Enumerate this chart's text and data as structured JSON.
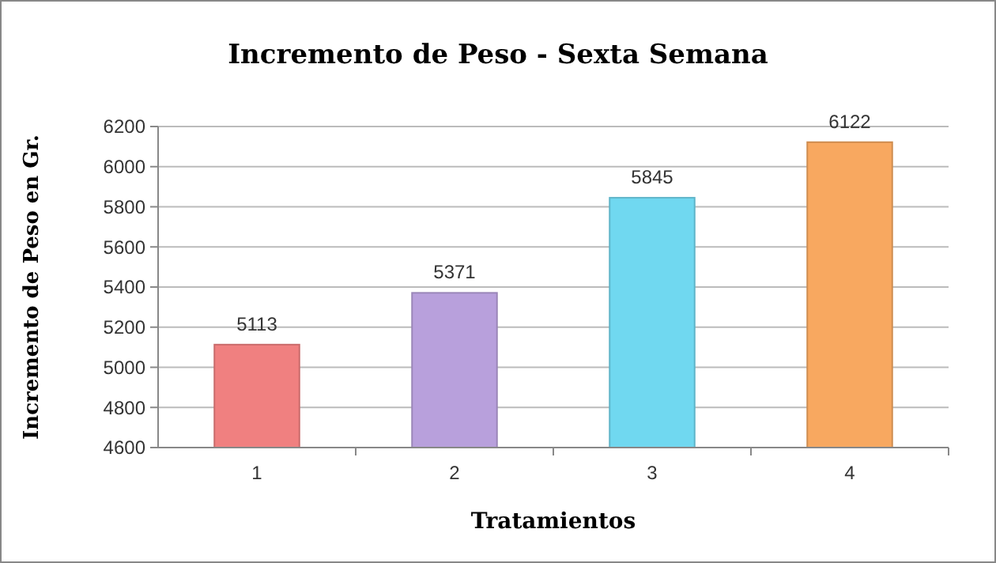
{
  "chart_data": {
    "type": "bar",
    "title": "Incremento de Peso - Sexta Semana",
    "xlabel": "Tratamientos",
    "ylabel": "Incremento de Peso en Gr.",
    "categories": [
      "1",
      "2",
      "3",
      "4"
    ],
    "values": [
      5113,
      5371,
      5845,
      6122
    ],
    "colors": [
      "#f08080",
      "#b8a0dc",
      "#70d8f0",
      "#f8a860"
    ],
    "ylim": [
      4600,
      6200
    ],
    "yticks": [
      4600,
      4800,
      5000,
      5200,
      5400,
      5600,
      5800,
      6000,
      6200
    ],
    "grid": "y",
    "data_labels": true
  }
}
